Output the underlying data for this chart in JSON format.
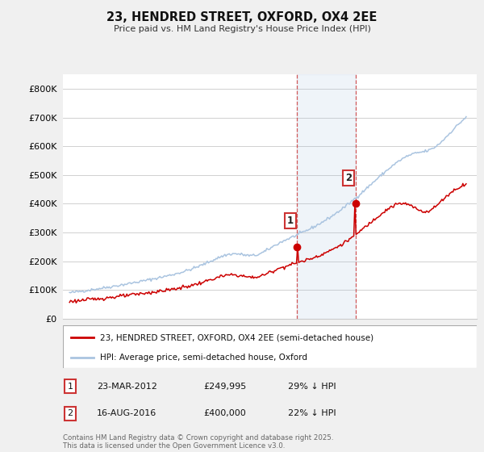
{
  "title": "23, HENDRED STREET, OXFORD, OX4 2EE",
  "subtitle": "Price paid vs. HM Land Registry's House Price Index (HPI)",
  "background_color": "#f0f0f0",
  "plot_bg_color": "#ffffff",
  "hpi_color": "#aac4e0",
  "price_color": "#cc0000",
  "transaction1": {
    "date": "23-MAR-2012",
    "price": 249995,
    "pct": "29% ↓ HPI",
    "year": 2012.22
  },
  "transaction2": {
    "date": "16-AUG-2016",
    "price": 400000,
    "pct": "22% ↓ HPI",
    "year": 2016.62
  },
  "legend_label_price": "23, HENDRED STREET, OXFORD, OX4 2EE (semi-detached house)",
  "legend_label_hpi": "HPI: Average price, semi-detached house, Oxford",
  "footer": "Contains HM Land Registry data © Crown copyright and database right 2025.\nThis data is licensed under the Open Government Licence v3.0."
}
